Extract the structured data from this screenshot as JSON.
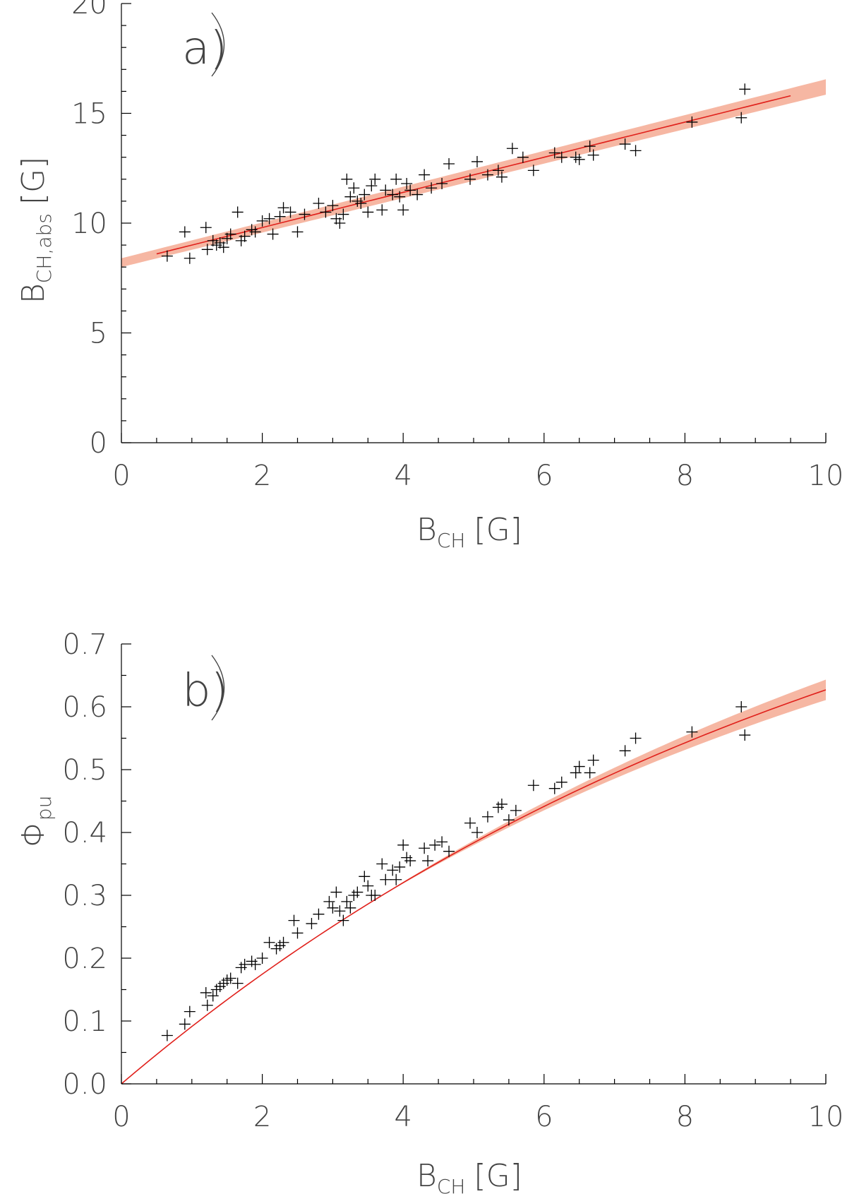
{
  "chart_data": [
    {
      "type": "scatter",
      "panel_label": "a)",
      "xlabel": "B",
      "xlabel_sub": "CH",
      "xlabel_unit": "[G]",
      "ylabel": "B",
      "ylabel_sub": "CH,abs",
      "ylabel_unit": "[G]",
      "xlim": [
        0,
        10
      ],
      "ylim": [
        0,
        20
      ],
      "xticks": [
        "0",
        "2",
        "4",
        "6",
        "8",
        "10"
      ],
      "yticks": [
        "0",
        "5",
        "10",
        "15",
        "20"
      ],
      "colors": {
        "fit": "#e0201b",
        "band": "#f6b7a3",
        "points": "#000000"
      },
      "points": [
        [
          0.65,
          8.5
        ],
        [
          0.9,
          9.6
        ],
        [
          0.97,
          8.4
        ],
        [
          1.2,
          9.8
        ],
        [
          1.22,
          8.8
        ],
        [
          1.3,
          9.2
        ],
        [
          1.35,
          9.0
        ],
        [
          1.4,
          9.1
        ],
        [
          1.45,
          8.9
        ],
        [
          1.5,
          9.3
        ],
        [
          1.55,
          9.5
        ],
        [
          1.65,
          10.5
        ],
        [
          1.7,
          9.2
        ],
        [
          1.75,
          9.4
        ],
        [
          1.85,
          9.7
        ],
        [
          1.9,
          9.6
        ],
        [
          2.0,
          10.1
        ],
        [
          2.1,
          10.2
        ],
        [
          2.15,
          9.5
        ],
        [
          2.25,
          10.3
        ],
        [
          2.3,
          10.7
        ],
        [
          2.4,
          10.5
        ],
        [
          2.5,
          9.6
        ],
        [
          2.6,
          10.4
        ],
        [
          2.8,
          10.9
        ],
        [
          2.9,
          10.5
        ],
        [
          3.0,
          10.8
        ],
        [
          3.05,
          10.2
        ],
        [
          3.1,
          10.0
        ],
        [
          3.15,
          10.4
        ],
        [
          3.2,
          12.0
        ],
        [
          3.25,
          11.2
        ],
        [
          3.3,
          11.6
        ],
        [
          3.35,
          11.0
        ],
        [
          3.4,
          10.9
        ],
        [
          3.45,
          11.3
        ],
        [
          3.5,
          10.5
        ],
        [
          3.55,
          11.7
        ],
        [
          3.6,
          12.0
        ],
        [
          3.7,
          10.6
        ],
        [
          3.75,
          11.5
        ],
        [
          3.85,
          11.3
        ],
        [
          3.9,
          12.0
        ],
        [
          3.95,
          11.2
        ],
        [
          4.0,
          10.6
        ],
        [
          4.05,
          11.8
        ],
        [
          4.1,
          11.5
        ],
        [
          4.2,
          11.3
        ],
        [
          4.3,
          12.2
        ],
        [
          4.4,
          11.6
        ],
        [
          4.55,
          11.8
        ],
        [
          4.65,
          12.7
        ],
        [
          4.95,
          12.0
        ],
        [
          5.05,
          12.8
        ],
        [
          5.2,
          12.2
        ],
        [
          5.35,
          12.4
        ],
        [
          5.4,
          12.1
        ],
        [
          5.55,
          13.4
        ],
        [
          5.7,
          13.0
        ],
        [
          5.85,
          12.4
        ],
        [
          6.15,
          13.2
        ],
        [
          6.25,
          13.0
        ],
        [
          6.45,
          13.0
        ],
        [
          6.5,
          12.9
        ],
        [
          6.65,
          13.5
        ],
        [
          6.7,
          13.1
        ],
        [
          7.15,
          13.6
        ],
        [
          7.3,
          13.3
        ],
        [
          8.1,
          14.6
        ],
        [
          8.8,
          14.8
        ],
        [
          8.85,
          16.1
        ]
      ],
      "fit": {
        "x_range": [
          0.5,
          9.5
        ],
        "band_x_range": [
          0,
          10
        ],
        "intercept": 8.2,
        "slope": 0.8
      }
    },
    {
      "type": "scatter",
      "panel_label": "b)",
      "xlabel": "B",
      "xlabel_sub": "CH",
      "xlabel_unit": "[G]",
      "ylabel": "Φ",
      "ylabel_sub": "pu",
      "xlim": [
        0,
        10
      ],
      "ylim": [
        0,
        0.7
      ],
      "xticks": [
        "0",
        "2",
        "4",
        "6",
        "8",
        "10"
      ],
      "yticks": [
        "0.0",
        "0.1",
        "0.2",
        "0.3",
        "0.4",
        "0.5",
        "0.6",
        "0.7"
      ],
      "colors": {
        "fit": "#e0201b",
        "band": "#f6b7a3",
        "points": "#000000"
      },
      "points": [
        [
          0.65,
          0.077
        ],
        [
          0.9,
          0.095
        ],
        [
          0.97,
          0.115
        ],
        [
          1.2,
          0.145
        ],
        [
          1.22,
          0.125
        ],
        [
          1.3,
          0.14
        ],
        [
          1.35,
          0.15
        ],
        [
          1.4,
          0.155
        ],
        [
          1.45,
          0.16
        ],
        [
          1.5,
          0.165
        ],
        [
          1.55,
          0.168
        ],
        [
          1.65,
          0.16
        ],
        [
          1.7,
          0.185
        ],
        [
          1.75,
          0.19
        ],
        [
          1.85,
          0.195
        ],
        [
          1.9,
          0.19
        ],
        [
          2.0,
          0.2
        ],
        [
          2.1,
          0.225
        ],
        [
          2.2,
          0.215
        ],
        [
          2.25,
          0.22
        ],
        [
          2.3,
          0.225
        ],
        [
          2.45,
          0.26
        ],
        [
          2.5,
          0.24
        ],
        [
          2.7,
          0.255
        ],
        [
          2.8,
          0.27
        ],
        [
          2.95,
          0.29
        ],
        [
          3.0,
          0.28
        ],
        [
          3.05,
          0.305
        ],
        [
          3.1,
          0.275
        ],
        [
          3.15,
          0.26
        ],
        [
          3.2,
          0.29
        ],
        [
          3.25,
          0.28
        ],
        [
          3.3,
          0.3
        ],
        [
          3.35,
          0.305
        ],
        [
          3.45,
          0.33
        ],
        [
          3.5,
          0.315
        ],
        [
          3.55,
          0.3
        ],
        [
          3.6,
          0.3
        ],
        [
          3.7,
          0.35
        ],
        [
          3.75,
          0.325
        ],
        [
          3.85,
          0.34
        ],
        [
          3.9,
          0.325
        ],
        [
          3.95,
          0.345
        ],
        [
          4.0,
          0.38
        ],
        [
          4.05,
          0.36
        ],
        [
          4.1,
          0.355
        ],
        [
          4.3,
          0.375
        ],
        [
          4.35,
          0.355
        ],
        [
          4.45,
          0.38
        ],
        [
          4.55,
          0.385
        ],
        [
          4.65,
          0.37
        ],
        [
          4.95,
          0.415
        ],
        [
          5.05,
          0.4
        ],
        [
          5.2,
          0.425
        ],
        [
          5.35,
          0.44
        ],
        [
          5.4,
          0.445
        ],
        [
          5.5,
          0.42
        ],
        [
          5.6,
          0.435
        ],
        [
          5.85,
          0.475
        ],
        [
          6.15,
          0.47
        ],
        [
          6.25,
          0.48
        ],
        [
          6.45,
          0.495
        ],
        [
          6.5,
          0.505
        ],
        [
          6.65,
          0.495
        ],
        [
          6.7,
          0.515
        ],
        [
          7.15,
          0.53
        ],
        [
          7.3,
          0.55
        ],
        [
          8.1,
          0.56
        ],
        [
          8.8,
          0.6
        ],
        [
          8.85,
          0.555
        ]
      ],
      "fit": {
        "x_range": [
          0,
          10
        ],
        "band_x_range": [
          3.5,
          10
        ],
        "model": "saturating"
      }
    }
  ]
}
